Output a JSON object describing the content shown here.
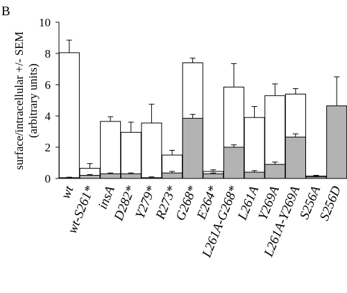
{
  "panel_label": "B",
  "chart_data": {
    "type": "bar",
    "ylabel_line1": "surface/intracellular +/- SEM",
    "ylabel_line2": "(arbitrary units)",
    "ylim": [
      0,
      10
    ],
    "yticks": [
      "0",
      "2",
      "4",
      "6",
      "8",
      "10"
    ],
    "grid": false,
    "categories": [
      "wt",
      "wt-S261*",
      "insA",
      "D282*",
      "Y279*",
      "R273*",
      "G268*",
      "E264*",
      "L261A-G268*",
      "L261A",
      "Y269A",
      "L261A-Y269A",
      "S256A",
      "S256D"
    ],
    "series": [
      {
        "style": "open",
        "values": [
          8.05,
          0.65,
          3.65,
          2.95,
          3.55,
          1.5,
          7.4,
          0.45,
          5.85,
          3.9,
          5.3,
          5.4,
          0.15,
          0.0
        ],
        "errors": [
          0.8,
          0.3,
          0.3,
          0.65,
          1.2,
          0.3,
          0.3,
          0.1,
          1.5,
          0.7,
          0.75,
          0.35,
          0.05,
          0.0
        ]
      },
      {
        "style": "filled",
        "values": [
          0.05,
          0.2,
          0.3,
          0.3,
          0.05,
          0.35,
          3.85,
          0.3,
          2.0,
          0.4,
          0.9,
          2.65,
          0.1,
          4.65
        ],
        "errors": [
          0.03,
          0.05,
          0.05,
          0.05,
          0.05,
          0.1,
          0.25,
          0.05,
          0.15,
          0.1,
          0.15,
          0.2,
          0.03,
          1.85
        ]
      }
    ],
    "colors": {
      "open": "#ffffff",
      "filled": "#b3b3b3",
      "stroke": "#000000"
    }
  }
}
